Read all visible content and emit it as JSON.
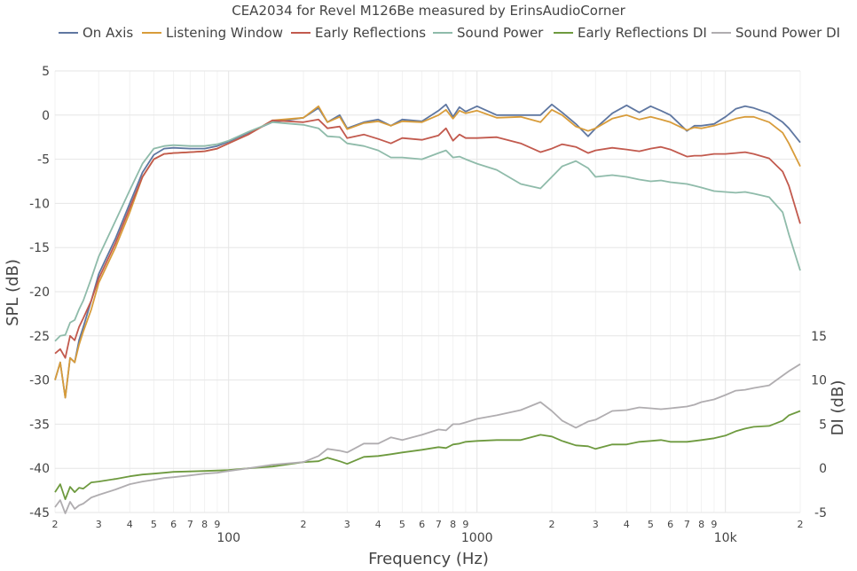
{
  "chart_data": {
    "type": "line",
    "title": "CEA2034 for Revel M126Be measured by ErinsAudioCorner",
    "xlabel": "Frequency (Hz)",
    "ylabel": "SPL (dB)",
    "y2label": "DI (dB)",
    "xscale": "log",
    "xlim": [
      20,
      20000
    ],
    "ylim": [
      -45,
      5
    ],
    "y2lim": [
      -5,
      45
    ],
    "y2ticks": [
      -5,
      0,
      5,
      10,
      15
    ],
    "grid": true,
    "legend_position": "top",
    "x_major_ticks": [
      {
        "value": 100,
        "label": "100"
      },
      {
        "value": 1000,
        "label": "1000"
      },
      {
        "value": 10000,
        "label": "10k"
      }
    ],
    "x_minor_ticks": [
      {
        "value": 20,
        "label": "2"
      },
      {
        "value": 30,
        "label": "3"
      },
      {
        "value": 40,
        "label": "4"
      },
      {
        "value": 50,
        "label": "5"
      },
      {
        "value": 60,
        "label": "6"
      },
      {
        "value": 70,
        "label": "7"
      },
      {
        "value": 80,
        "label": "8"
      },
      {
        "value": 90,
        "label": "9"
      },
      {
        "value": 200,
        "label": "2"
      },
      {
        "value": 300,
        "label": "3"
      },
      {
        "value": 400,
        "label": "4"
      },
      {
        "value": 500,
        "label": "5"
      },
      {
        "value": 600,
        "label": "6"
      },
      {
        "value": 700,
        "label": "7"
      },
      {
        "value": 800,
        "label": "8"
      },
      {
        "value": 900,
        "label": "9"
      },
      {
        "value": 2000,
        "label": "2"
      },
      {
        "value": 3000,
        "label": "3"
      },
      {
        "value": 4000,
        "label": "4"
      },
      {
        "value": 5000,
        "label": "5"
      },
      {
        "value": 6000,
        "label": "6"
      },
      {
        "value": 7000,
        "label": "7"
      },
      {
        "value": 8000,
        "label": "8"
      },
      {
        "value": 9000,
        "label": "9"
      },
      {
        "value": 20000,
        "label": "2"
      }
    ],
    "y_ticks": [
      5,
      0,
      -5,
      -10,
      -15,
      -20,
      -25,
      -30,
      -35,
      -40,
      -45
    ],
    "series": [
      {
        "name": "On Axis",
        "color": "#5f77a1",
        "axis": "y",
        "x": [
          20,
          21,
          22,
          23,
          24,
          25,
          26,
          28,
          30,
          35,
          40,
          45,
          50,
          55,
          60,
          70,
          80,
          90,
          100,
          120,
          150,
          200,
          230,
          250,
          280,
          300,
          350,
          400,
          450,
          500,
          600,
          700,
          750,
          800,
          850,
          900,
          1000,
          1200,
          1500,
          1800,
          2000,
          2200,
          2500,
          2800,
          3000,
          3500,
          4000,
          4500,
          5000,
          5500,
          6000,
          7000,
          7500,
          8000,
          9000,
          10000,
          11000,
          12000,
          13000,
          15000,
          17000,
          18000,
          20000
        ],
        "y": [
          -30,
          -28,
          -32,
          -27.5,
          -28,
          -25.5,
          -24,
          -21,
          -18,
          -14,
          -10,
          -6.5,
          -4.5,
          -3.8,
          -3.7,
          -3.8,
          -3.8,
          -3.5,
          -3,
          -2,
          -0.8,
          -0.3,
          0.8,
          -0.8,
          0,
          -1.5,
          -0.8,
          -0.5,
          -1.2,
          -0.5,
          -0.7,
          0.5,
          1.2,
          -0.2,
          0.9,
          0.4,
          1,
          0,
          0,
          0,
          1.2,
          0.3,
          -1,
          -2.4,
          -1.5,
          0.2,
          1.1,
          0.3,
          1,
          0.5,
          0,
          -1.8,
          -1.2,
          -1.2,
          -1,
          -0.2,
          0.7,
          1,
          0.8,
          0.2,
          -0.8,
          -1.5,
          -3.1
        ]
      },
      {
        "name": "Listening Window",
        "color": "#d89c3a",
        "axis": "y",
        "x": [
          20,
          21,
          22,
          23,
          24,
          25,
          26,
          28,
          30,
          35,
          40,
          45,
          50,
          55,
          60,
          70,
          80,
          90,
          100,
          120,
          150,
          200,
          230,
          250,
          280,
          300,
          350,
          400,
          450,
          500,
          600,
          700,
          750,
          800,
          850,
          900,
          1000,
          1200,
          1500,
          1800,
          2000,
          2200,
          2500,
          2800,
          3000,
          3500,
          4000,
          4500,
          5000,
          5500,
          6000,
          7000,
          7500,
          8000,
          9000,
          10000,
          11000,
          12000,
          13000,
          15000,
          17000,
          18000,
          20000
        ],
        "y": [
          -30,
          -28,
          -32,
          -27.5,
          -28,
          -26,
          -24.5,
          -22,
          -19,
          -15,
          -11,
          -7,
          -5,
          -4.4,
          -4.3,
          -4.2,
          -4.1,
          -3.8,
          -3.2,
          -2.2,
          -0.6,
          -0.3,
          1,
          -0.8,
          -0.2,
          -1.6,
          -0.9,
          -0.7,
          -1.2,
          -0.7,
          -0.8,
          0,
          0.6,
          -0.4,
          0.5,
          0.2,
          0.5,
          -0.3,
          -0.2,
          -0.8,
          0.6,
          0,
          -1.3,
          -1.8,
          -1.5,
          -0.4,
          0,
          -0.5,
          -0.2,
          -0.5,
          -0.8,
          -1.7,
          -1.4,
          -1.5,
          -1.2,
          -0.8,
          -0.4,
          -0.2,
          -0.2,
          -0.8,
          -2,
          -3.2,
          -5.8
        ]
      },
      {
        "name": "Early Reflections",
        "color": "#c25a4e",
        "axis": "y",
        "x": [
          20,
          21,
          22,
          23,
          24,
          25,
          26,
          28,
          30,
          35,
          40,
          45,
          50,
          55,
          60,
          70,
          80,
          90,
          100,
          120,
          150,
          200,
          230,
          250,
          280,
          300,
          350,
          400,
          450,
          500,
          600,
          700,
          750,
          800,
          850,
          900,
          1000,
          1200,
          1500,
          1800,
          2000,
          2200,
          2500,
          2800,
          3000,
          3500,
          4000,
          4500,
          5000,
          5500,
          6000,
          7000,
          7500,
          8000,
          9000,
          10000,
          11000,
          12000,
          13000,
          15000,
          17000,
          18000,
          20000
        ],
        "y": [
          -27,
          -26.5,
          -27.5,
          -25,
          -25.5,
          -24,
          -23,
          -21,
          -18.5,
          -14.5,
          -10.5,
          -7,
          -5,
          -4.4,
          -4.3,
          -4.2,
          -4.1,
          -3.8,
          -3.2,
          -2.2,
          -0.6,
          -0.8,
          -0.5,
          -1.5,
          -1.3,
          -2.6,
          -2.2,
          -2.7,
          -3.2,
          -2.6,
          -2.8,
          -2.3,
          -1.5,
          -2.9,
          -2.2,
          -2.6,
          -2.6,
          -2.5,
          -3.2,
          -4.2,
          -3.8,
          -3.3,
          -3.6,
          -4.3,
          -4,
          -3.7,
          -3.9,
          -4.1,
          -3.8,
          -3.6,
          -3.9,
          -4.7,
          -4.6,
          -4.6,
          -4.4,
          -4.4,
          -4.3,
          -4.2,
          -4.4,
          -4.9,
          -6.4,
          -8,
          -12.3
        ]
      },
      {
        "name": "Sound Power",
        "color": "#8fbbaa",
        "axis": "y",
        "x": [
          20,
          21,
          22,
          23,
          24,
          25,
          26,
          28,
          30,
          35,
          40,
          45,
          50,
          55,
          60,
          70,
          80,
          90,
          100,
          120,
          150,
          200,
          230,
          250,
          280,
          300,
          350,
          400,
          450,
          500,
          600,
          700,
          750,
          800,
          850,
          900,
          1000,
          1200,
          1500,
          1800,
          2000,
          2200,
          2500,
          2800,
          3000,
          3500,
          4000,
          4500,
          5000,
          5500,
          6000,
          7000,
          7500,
          8000,
          9000,
          10000,
          11000,
          12000,
          13000,
          15000,
          17000,
          18000,
          20000
        ],
        "y": [
          -25.6,
          -25,
          -24.9,
          -23.5,
          -23.2,
          -22,
          -21,
          -18.5,
          -16,
          -12,
          -8.5,
          -5.5,
          -3.8,
          -3.5,
          -3.4,
          -3.5,
          -3.5,
          -3.3,
          -2.9,
          -1.9,
          -0.8,
          -1.1,
          -1.5,
          -2.4,
          -2.5,
          -3.2,
          -3.5,
          -4,
          -4.8,
          -4.8,
          -5,
          -4.3,
          -4,
          -4.8,
          -4.7,
          -5,
          -5.5,
          -6.2,
          -7.8,
          -8.3,
          -7,
          -5.8,
          -5.2,
          -6,
          -7,
          -6.8,
          -7,
          -7.3,
          -7.5,
          -7.4,
          -7.6,
          -7.8,
          -8,
          -8.2,
          -8.6,
          -8.7,
          -8.8,
          -8.7,
          -8.9,
          -9.3,
          -11,
          -13.5,
          -17.6
        ]
      },
      {
        "name": "Early Reflections DI",
        "color": "#6e9a3f",
        "axis": "y2",
        "x": [
          20,
          21,
          22,
          23,
          24,
          25,
          26,
          28,
          30,
          35,
          40,
          45,
          50,
          55,
          60,
          70,
          80,
          90,
          100,
          120,
          150,
          200,
          230,
          250,
          280,
          300,
          350,
          400,
          450,
          500,
          600,
          700,
          750,
          800,
          850,
          900,
          1000,
          1200,
          1500,
          1800,
          2000,
          2200,
          2500,
          2800,
          3000,
          3500,
          4000,
          4500,
          5000,
          5500,
          6000,
          7000,
          7500,
          8000,
          9000,
          10000,
          11000,
          12000,
          13000,
          15000,
          17000,
          18000,
          20000
        ],
        "y": [
          -2.7,
          -1.8,
          -3.5,
          -2.1,
          -2.7,
          -2.2,
          -2.3,
          -1.6,
          -1.5,
          -1.2,
          -0.9,
          -0.7,
          -0.6,
          -0.5,
          -0.4,
          -0.35,
          -0.3,
          -0.25,
          -0.2,
          0,
          0.2,
          0.7,
          0.8,
          1.2,
          0.8,
          0.5,
          1.3,
          1.4,
          1.6,
          1.8,
          2.1,
          2.4,
          2.3,
          2.7,
          2.8,
          3,
          3.1,
          3.2,
          3.2,
          3.8,
          3.6,
          3.1,
          2.6,
          2.5,
          2.2,
          2.7,
          2.7,
          3,
          3.1,
          3.2,
          3,
          3,
          3.1,
          3.2,
          3.4,
          3.7,
          4.2,
          4.5,
          4.7,
          4.8,
          5.4,
          6,
          6.5
        ]
      },
      {
        "name": "Sound Power DI",
        "color": "#b0adb0",
        "axis": "y2",
        "x": [
          20,
          21,
          22,
          23,
          24,
          25,
          26,
          28,
          30,
          35,
          40,
          45,
          50,
          55,
          60,
          70,
          80,
          90,
          100,
          120,
          150,
          200,
          230,
          250,
          280,
          300,
          350,
          400,
          450,
          500,
          600,
          700,
          750,
          800,
          850,
          900,
          1000,
          1200,
          1500,
          1800,
          2000,
          2200,
          2500,
          2800,
          3000,
          3500,
          4000,
          4500,
          5000,
          5500,
          6000,
          7000,
          7500,
          8000,
          9000,
          10000,
          11000,
          12000,
          13000,
          15000,
          17000,
          18000,
          20000
        ],
        "y": [
          -4.4,
          -3.6,
          -5.1,
          -3.8,
          -4.6,
          -4.2,
          -4,
          -3.3,
          -3,
          -2.4,
          -1.8,
          -1.5,
          -1.3,
          -1.1,
          -1,
          -0.8,
          -0.6,
          -0.5,
          -0.3,
          0,
          0.4,
          0.7,
          1.4,
          2.2,
          2,
          1.8,
          2.8,
          2.8,
          3.5,
          3.2,
          3.8,
          4.4,
          4.3,
          5,
          5,
          5.2,
          5.6,
          6,
          6.6,
          7.5,
          6.5,
          5.4,
          4.6,
          5.3,
          5.5,
          6.5,
          6.6,
          6.9,
          6.8,
          6.7,
          6.8,
          7,
          7.2,
          7.5,
          7.8,
          8.3,
          8.8,
          8.9,
          9.1,
          9.4,
          10.5,
          11,
          11.8
        ]
      }
    ]
  }
}
